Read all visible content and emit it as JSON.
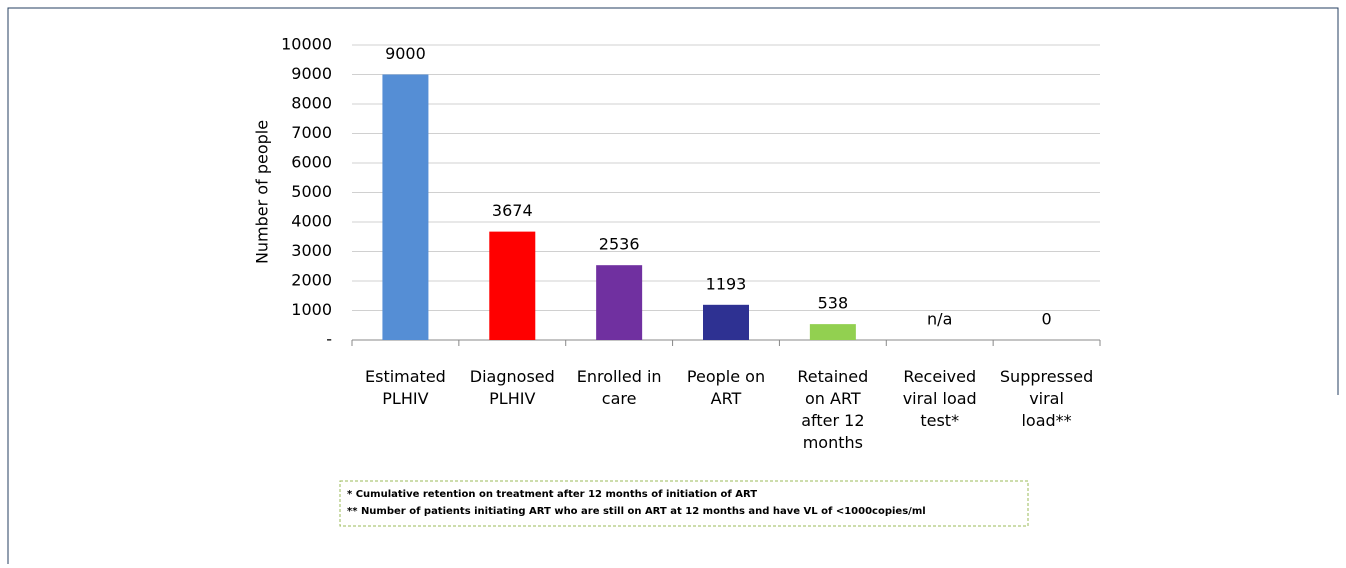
{
  "chart_data": {
    "type": "bar",
    "y_label": "Number of people",
    "categories": [
      "Estimated\nPLHIV",
      "Diagnosed\nPLHIV",
      "Enrolled in\ncare",
      "People on\nART",
      "Retained\non ART\nafter 12\nmonths",
      "Received\nviral load\ntest*",
      "Suppressed\nviral\nload**"
    ],
    "values": [
      9000,
      3674,
      2536,
      1193,
      538,
      null,
      0
    ],
    "value_labels": [
      "9000",
      "3674",
      "2536",
      "1193",
      "538",
      "n/a",
      "0"
    ],
    "colors": [
      "#558ed5",
      "#ff0000",
      "#7030a0",
      "#2e3192",
      "#92d050",
      "#92d050",
      "#92d050"
    ],
    "ylim": [
      0,
      10000
    ],
    "yticks": [
      {
        "value": 0,
        "label": "-"
      },
      1000,
      2000,
      3000,
      4000,
      5000,
      6000,
      7000,
      8000,
      9000,
      10000
    ],
    "grid": true,
    "footnotes": [
      "* Cumulative retention on treatment after 12 months of initiation of ART",
      "** Number of patients initiating ART who are still on ART at 12 months and have VL of <1000copies/ml"
    ]
  }
}
